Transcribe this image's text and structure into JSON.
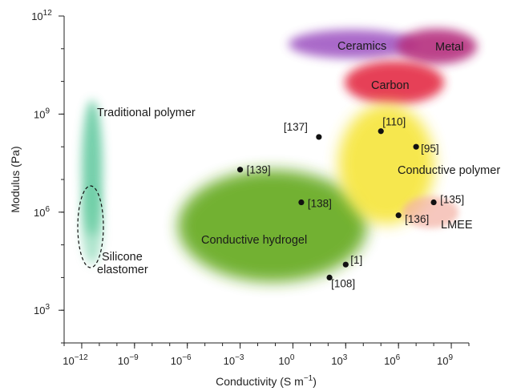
{
  "chart_data": {
    "type": "scatter",
    "title": "",
    "xlabel": "Conductivity (S m",
    "xlabel_sup": "−1",
    "xlabel_close": ")",
    "ylabel": "Modulus (Pa)",
    "x_scale": "log",
    "y_scale": "log",
    "xlim": [
      1e-13,
      10000000000.0
    ],
    "ylim": [
      100.0,
      1000000000000.0
    ],
    "grid": false,
    "x_ticks": [
      {
        "value": 1e-12,
        "base": "10",
        "exp": "−12"
      },
      {
        "value": 1e-09,
        "base": "10",
        "exp": "−9"
      },
      {
        "value": 1e-06,
        "base": "10",
        "exp": "−6"
      },
      {
        "value": 0.001,
        "base": "10",
        "exp": "−3"
      },
      {
        "value": 1,
        "base": "10",
        "exp": "0"
      },
      {
        "value": 1000.0,
        "base": "10",
        "exp": "3"
      },
      {
        "value": 1000000.0,
        "base": "10",
        "exp": "6"
      },
      {
        "value": 1000000000.0,
        "base": "10",
        "exp": "9"
      }
    ],
    "y_ticks": [
      {
        "value": 1000.0,
        "base": "10",
        "exp": "3"
      },
      {
        "value": 1000000.0,
        "base": "10",
        "exp": "6"
      },
      {
        "value": 1000000000.0,
        "base": "10",
        "exp": "9"
      },
      {
        "value": 1000000000000.0,
        "base": "10",
        "exp": "12"
      }
    ],
    "regions": [
      {
        "name": "Ceramics",
        "color": "#9b59b6"
      },
      {
        "name": "Metal",
        "color": "#b0307a"
      },
      {
        "name": "Carbon",
        "color": "#e0304a"
      },
      {
        "name": "Traditional polymer",
        "color": "#5cc49a"
      },
      {
        "name": "Silicone elastomer",
        "color": "#5cc49a"
      },
      {
        "name": "Conductive hydrogel",
        "color": "#6aaa2a"
      },
      {
        "name": "Conductive polymer",
        "color": "#f5e23a"
      },
      {
        "name": "LMEE",
        "color": "#f4b6a8"
      }
    ],
    "points": [
      {
        "label": "[137]",
        "x": 30.0,
        "y": 200000000.0
      },
      {
        "label": "[110]",
        "x": 100000.0,
        "y": 300000000.0
      },
      {
        "label": "[95]",
        "x": 10000000.0,
        "y": 100000000.0
      },
      {
        "label": "[139]",
        "x": 0.001,
        "y": 20000000.0
      },
      {
        "label": "[138]",
        "x": 3.0,
        "y": 2000000.0
      },
      {
        "label": "[135]",
        "x": 100000000.0,
        "y": 2000000.0
      },
      {
        "label": "[136]",
        "x": 1000000.0,
        "y": 800000.0
      },
      {
        "label": "[1]",
        "x": 1000.0,
        "y": 25000.0
      },
      {
        "label": "[108]",
        "x": 120.0,
        "y": 10000.0
      }
    ]
  }
}
